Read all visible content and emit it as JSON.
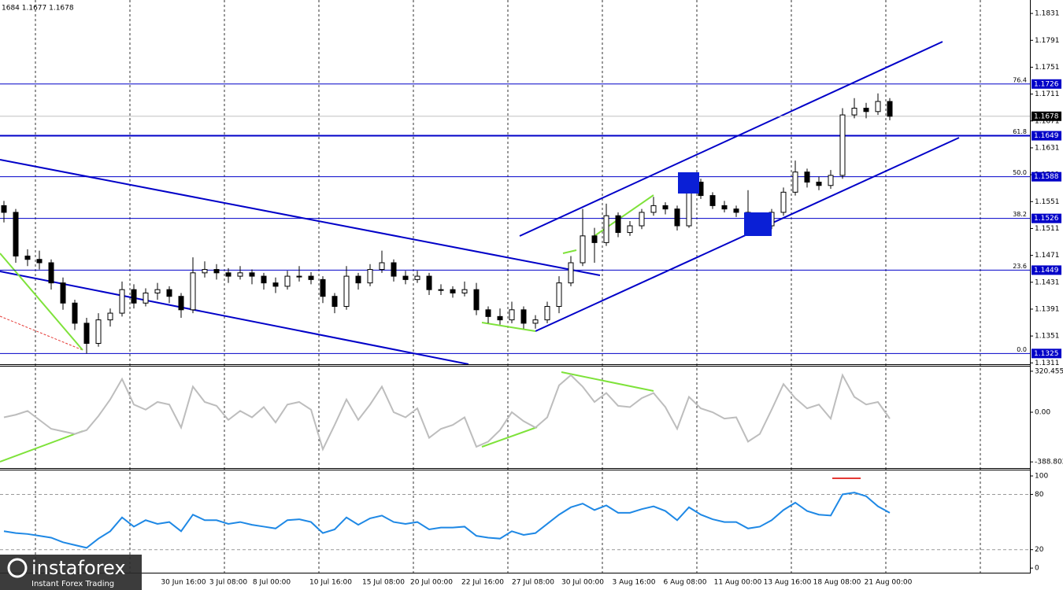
{
  "chart_data": [
    {
      "type": "candlestick",
      "header": "1684 1.1677 1.1678",
      "candles": [
        [
          1.1545,
          1.1552,
          1.152,
          1.1535
        ],
        [
          1.1535,
          1.154,
          1.146,
          1.147
        ],
        [
          1.147,
          1.148,
          1.1455,
          1.1465
        ],
        [
          1.1465,
          1.1478,
          1.145,
          1.146
        ],
        [
          1.146,
          1.1465,
          1.142,
          1.143
        ],
        [
          1.143,
          1.1438,
          1.139,
          1.14
        ],
        [
          1.14,
          1.1405,
          1.136,
          1.137
        ],
        [
          1.137,
          1.1378,
          1.1325,
          1.134
        ],
        [
          1.134,
          1.1385,
          1.1335,
          1.1375
        ],
        [
          1.1375,
          1.1392,
          1.1365,
          1.1385
        ],
        [
          1.1385,
          1.1432,
          1.138,
          1.142
        ],
        [
          1.142,
          1.1428,
          1.1392,
          1.14
        ],
        [
          1.14,
          1.1422,
          1.1395,
          1.1415
        ],
        [
          1.1415,
          1.143,
          1.1405,
          1.142
        ],
        [
          1.142,
          1.1425,
          1.14,
          1.141
        ],
        [
          1.141,
          1.1415,
          1.1378,
          1.139
        ],
        [
          1.139,
          1.1468,
          1.1385,
          1.1445
        ],
        [
          1.1445,
          1.1462,
          1.1438,
          1.145
        ],
        [
          1.145,
          1.1458,
          1.1435,
          1.1445
        ],
        [
          1.1445,
          1.1452,
          1.143,
          1.144
        ],
        [
          1.144,
          1.1455,
          1.1435,
          1.1445
        ],
        [
          1.1445,
          1.145,
          1.1428,
          1.144
        ],
        [
          1.144,
          1.1445,
          1.142,
          1.143
        ],
        [
          1.143,
          1.1438,
          1.1415,
          1.1425
        ],
        [
          1.1425,
          1.1448,
          1.142,
          1.144
        ],
        [
          1.144,
          1.1455,
          1.1432,
          1.144
        ],
        [
          1.144,
          1.1446,
          1.1428,
          1.1435
        ],
        [
          1.1435,
          1.144,
          1.14,
          1.141
        ],
        [
          1.141,
          1.1415,
          1.1385,
          1.1395
        ],
        [
          1.1395,
          1.1455,
          1.139,
          1.144
        ],
        [
          1.144,
          1.1445,
          1.142,
          1.143
        ],
        [
          1.143,
          1.1458,
          1.1425,
          1.145
        ],
        [
          1.145,
          1.1478,
          1.1445,
          1.146
        ],
        [
          1.146,
          1.1465,
          1.1432,
          1.144
        ],
        [
          1.144,
          1.1448,
          1.1428,
          1.1435
        ],
        [
          1.1435,
          1.1448,
          1.143,
          1.144
        ],
        [
          1.144,
          1.1445,
          1.1412,
          1.142
        ],
        [
          1.142,
          1.1428,
          1.1412,
          1.142
        ],
        [
          1.142,
          1.1425,
          1.1408,
          1.1415
        ],
        [
          1.1415,
          1.1432,
          1.141,
          1.142
        ],
        [
          1.142,
          1.143,
          1.1382,
          1.139
        ],
        [
          1.139,
          1.1395,
          1.137,
          1.138
        ],
        [
          1.138,
          1.1392,
          1.1368,
          1.1375
        ],
        [
          1.1375,
          1.1402,
          1.137,
          1.139
        ],
        [
          1.139,
          1.1395,
          1.1362,
          1.137
        ],
        [
          1.137,
          1.1382,
          1.1362,
          1.1375
        ],
        [
          1.1375,
          1.1402,
          1.137,
          1.1395
        ],
        [
          1.1395,
          1.144,
          1.1385,
          1.143
        ],
        [
          1.143,
          1.147,
          1.1425,
          1.146
        ],
        [
          1.146,
          1.154,
          1.1455,
          1.15
        ],
        [
          1.15,
          1.1512,
          1.146,
          1.149
        ],
        [
          1.149,
          1.1548,
          1.1485,
          1.153
        ],
        [
          1.153,
          1.1535,
          1.1498,
          1.1505
        ],
        [
          1.1505,
          1.1522,
          1.15,
          1.1515
        ],
        [
          1.1515,
          1.154,
          1.151,
          1.1535
        ],
        [
          1.1535,
          1.1558,
          1.153,
          1.1545
        ],
        [
          1.1545,
          1.155,
          1.1532,
          1.154
        ],
        [
          1.154,
          1.1545,
          1.1508,
          1.1515
        ],
        [
          1.1515,
          1.1592,
          1.1512,
          1.158
        ],
        [
          1.158,
          1.1585,
          1.1555,
          1.156
        ],
        [
          1.156,
          1.1565,
          1.154,
          1.1545
        ],
        [
          1.1545,
          1.1552,
          1.1535,
          1.154
        ],
        [
          1.154,
          1.1545,
          1.1528,
          1.1535
        ],
        [
          1.1535,
          1.1568,
          1.152,
          1.1525
        ],
        [
          1.1525,
          1.153,
          1.1505,
          1.1515
        ],
        [
          1.1515,
          1.154,
          1.151,
          1.1535
        ],
        [
          1.1535,
          1.1572,
          1.153,
          1.1565
        ],
        [
          1.1565,
          1.1612,
          1.156,
          1.1595
        ],
        [
          1.1595,
          1.16,
          1.1572,
          1.158
        ],
        [
          1.158,
          1.1588,
          1.1568,
          1.1575
        ],
        [
          1.1575,
          1.1598,
          1.157,
          1.159
        ],
        [
          1.159,
          1.169,
          1.1585,
          1.168
        ],
        [
          1.168,
          1.1705,
          1.1675,
          1.169
        ],
        [
          1.169,
          1.1698,
          1.1675,
          1.1685
        ],
        [
          1.1685,
          1.1712,
          1.168,
          1.17
        ],
        [
          1.17,
          1.1705,
          1.1672,
          1.1678
        ]
      ],
      "ylim": [
        1.1309,
        1.1851
      ],
      "yticks": [
        1.1831,
        1.1791,
        1.1751,
        1.1711,
        1.1671,
        1.1631,
        1.1591,
        1.1551,
        1.1511,
        1.1471,
        1.1431,
        1.1391,
        1.1351,
        1.1311
      ],
      "levels": [
        {
          "label": "76.4",
          "value": 1.1726
        },
        {
          "label": "61.8",
          "value": 1.1649
        },
        {
          "label": "50.0",
          "value": 1.1588
        },
        {
          "label": "38.2",
          "value": 1.1526
        },
        {
          "label": "23.6",
          "value": 1.1449
        },
        {
          "label": "0.0",
          "value": 1.1325
        }
      ],
      "level_color": "#0000c8",
      "last_price": 1.1678,
      "time_labels": [
        "30 Jun 16:00",
        "3 Jul 08:00",
        "8 Jul 00:00",
        "10 Jul 16:00",
        "15 Jul 08:00",
        "20 Jul 00:00",
        "22 Jul 16:00",
        "27 Jul 08:00",
        "30 Jul 00:00",
        "3 Aug 16:00",
        "6 Aug 08:00",
        "11 Aug 00:00",
        "13 Aug 16:00",
        "18 Aug 08:00",
        "21 Aug 00:00"
      ]
    },
    {
      "type": "line",
      "color": "#bdbdbd",
      "values": [
        -40,
        -20,
        10,
        -60,
        -130,
        -150,
        -170,
        -140,
        -30,
        100,
        260,
        60,
        20,
        80,
        60,
        -120,
        200,
        80,
        50,
        -60,
        10,
        -40,
        40,
        -80,
        60,
        80,
        20,
        -290,
        -100,
        100,
        -60,
        60,
        200,
        0,
        -40,
        30,
        -200,
        -130,
        -100,
        -40,
        -270,
        -230,
        -140,
        0,
        -70,
        -120,
        -40,
        210,
        290,
        200,
        80,
        150,
        50,
        40,
        110,
        150,
        40,
        -130,
        120,
        30,
        0,
        -50,
        -40,
        -230,
        -170,
        20,
        220,
        110,
        30,
        60,
        -50,
        290,
        120,
        60,
        80,
        -50
      ],
      "ylim": [
        -437,
        363
      ],
      "yticks": [
        320.4558,
        {
          "value": 0,
          "label": "0.00"
        },
        -388.8026
      ]
    },
    {
      "type": "line",
      "color": "#1e88e5",
      "values": [
        40,
        38,
        37,
        35,
        33,
        28,
        25,
        22,
        32,
        40,
        55,
        45,
        52,
        48,
        50,
        40,
        58,
        52,
        52,
        48,
        50,
        47,
        45,
        43,
        52,
        53,
        50,
        38,
        42,
        55,
        47,
        54,
        57,
        50,
        48,
        50,
        42,
        44,
        44,
        45,
        35,
        33,
        32,
        40,
        36,
        38,
        48,
        58,
        66,
        70,
        63,
        68,
        60,
        60,
        64,
        67,
        62,
        52,
        66,
        58,
        53,
        50,
        50,
        43,
        45,
        52,
        63,
        71,
        62,
        58,
        57,
        80,
        82,
        78,
        67,
        60
      ],
      "ylim": [
        -5,
        106
      ],
      "yticks": [
        100,
        80,
        20,
        0
      ],
      "guides": [
        80,
        20
      ]
    }
  ],
  "logo": {
    "name": "instaforex",
    "tagline": "Instant Forex Trading"
  }
}
